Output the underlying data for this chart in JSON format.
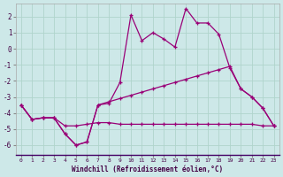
{
  "xlabel": "Windchill (Refroidissement éolien,°C)",
  "background_color": "#cde8e8",
  "grid_color": "#b0d4cc",
  "line_color": "#990077",
  "xlim": [
    -0.5,
    23.5
  ],
  "ylim": [
    -6.6,
    2.8
  ],
  "yticks": [
    2,
    1,
    0,
    -1,
    -2,
    -3,
    -4,
    -5,
    -6
  ],
  "xticks": [
    0,
    1,
    2,
    3,
    4,
    5,
    6,
    7,
    8,
    9,
    10,
    11,
    12,
    13,
    14,
    15,
    16,
    17,
    18,
    19,
    20,
    21,
    22,
    23
  ],
  "line1_x": [
    0,
    1,
    2,
    3,
    4,
    5,
    6,
    7,
    8,
    9,
    10,
    11,
    12,
    13,
    14,
    15,
    16,
    17,
    18,
    19,
    20,
    21,
    22,
    23
  ],
  "line1_y": [
    -3.5,
    -4.4,
    -4.3,
    -4.3,
    -5.3,
    -6.0,
    -5.8,
    -3.5,
    -3.4,
    -2.1,
    2.1,
    0.5,
    1.0,
    0.6,
    0.1,
    2.5,
    1.6,
    1.6,
    0.9,
    -1.2,
    -2.5,
    -3.0,
    -3.7,
    -4.8
  ],
  "line2_x": [
    0,
    1,
    2,
    3,
    4,
    5,
    6,
    7,
    8,
    9,
    10,
    11,
    12,
    13,
    14,
    15,
    16,
    17,
    18,
    19,
    20,
    21,
    22,
    23
  ],
  "line2_y": [
    -3.5,
    -4.4,
    -4.3,
    -4.3,
    -4.8,
    -4.8,
    -4.7,
    -4.6,
    -4.6,
    -4.7,
    -4.7,
    -4.7,
    -4.7,
    -4.7,
    -4.7,
    -4.7,
    -4.7,
    -4.7,
    -4.7,
    -4.7,
    -4.7,
    -4.7,
    -4.8,
    -4.8
  ],
  "line3_x": [
    0,
    1,
    2,
    3,
    4,
    5,
    6,
    7,
    8,
    9,
    10,
    11,
    12,
    13,
    14,
    15,
    16,
    17,
    18,
    19,
    20,
    21,
    22,
    23
  ],
  "line3_y": [
    -3.5,
    -4.4,
    -4.3,
    -4.3,
    -5.3,
    -6.0,
    -5.8,
    -3.5,
    -3.3,
    -3.1,
    -2.9,
    -2.7,
    -2.5,
    -2.3,
    -2.1,
    -1.9,
    -1.7,
    -1.5,
    -1.3,
    -1.1,
    -2.5,
    -3.0,
    -3.7,
    -4.8
  ]
}
